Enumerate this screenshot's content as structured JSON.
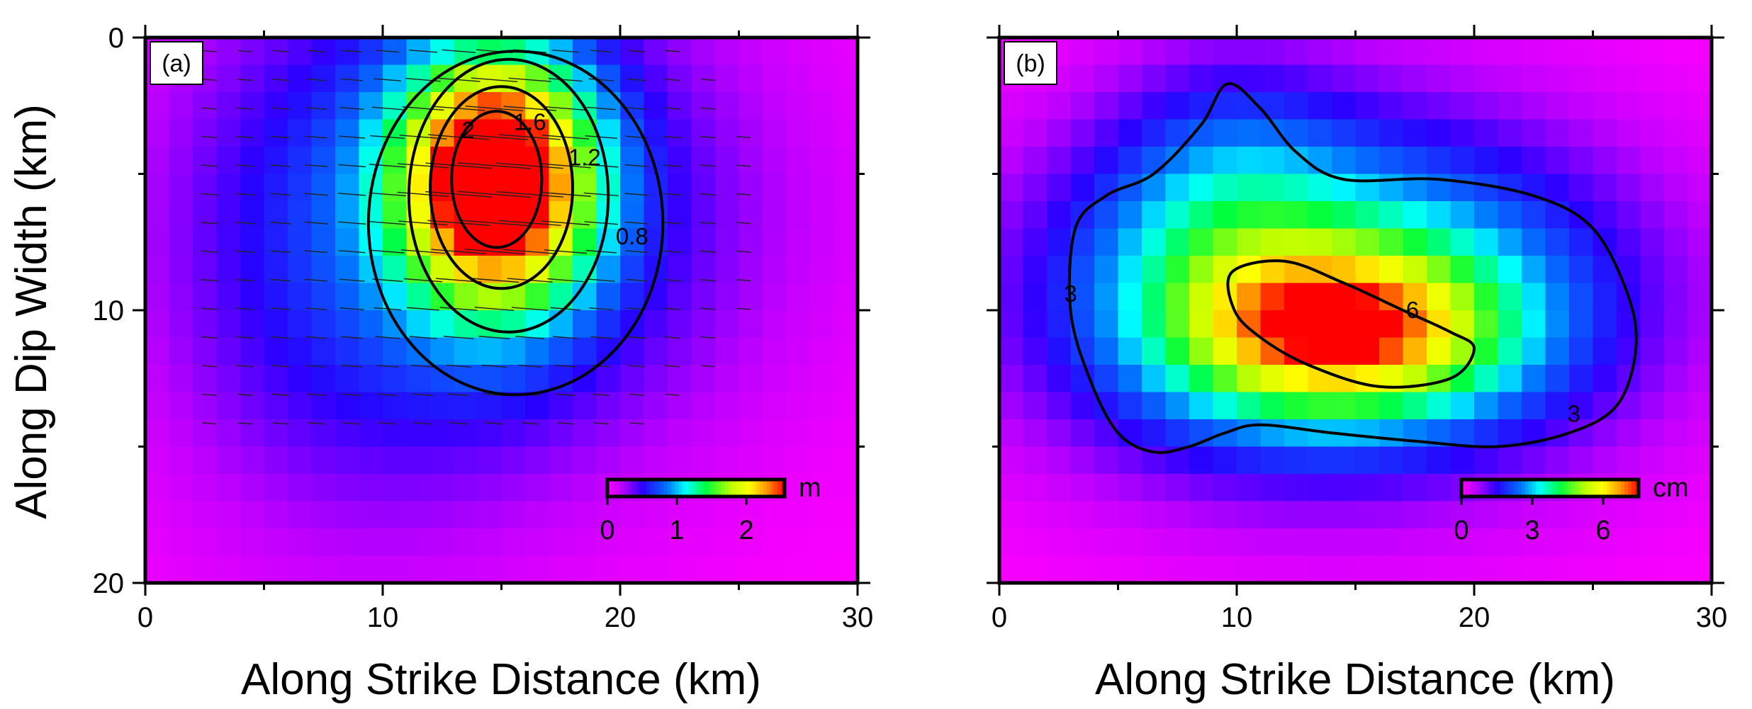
{
  "chart_data": [
    {
      "type": "heatmap",
      "panel_label": "(a)",
      "title": "",
      "xlabel": "Along Strike Distance (km)",
      "ylabel": "Along Dip Width (km)",
      "xlim": [
        0,
        30
      ],
      "ylim": [
        0,
        20
      ],
      "y_inverted": true,
      "xticks": [
        "0",
        "10",
        "20",
        "30"
      ],
      "yticks": [
        "0",
        "10",
        "20"
      ],
      "grid": {
        "nx": 30,
        "ny": 20
      },
      "field": {
        "max": 2.55,
        "sources": [
          {
            "x": 14.8,
            "y": 5.2,
            "sx": 2.8,
            "sy": 3.2,
            "amp": 2.55
          },
          {
            "x": 15.5,
            "y": 6.5,
            "sx": 8.0,
            "sy": 6.5,
            "amp": 0.6
          },
          {
            "x": 8.0,
            "y": 8.0,
            "sx": 6.0,
            "sy": 8.0,
            "amp": 0.35
          }
        ]
      },
      "contours": [
        {
          "level": 2.0,
          "label": "2",
          "center": [
            14.8,
            5.2
          ],
          "rx": 1.9,
          "ry": 2.5,
          "label_at": [
            13.6,
            3.4
          ]
        },
        {
          "level": 1.6,
          "label": "1.6",
          "center": [
            15.0,
            5.5
          ],
          "rx": 3.0,
          "ry": 3.7,
          "label_at": [
            16.2,
            3.1
          ]
        },
        {
          "level": 1.2,
          "label": "1.2",
          "center": [
            15.3,
            5.8
          ],
          "rx": 4.2,
          "ry": 5.0,
          "label_at": [
            18.5,
            4.4
          ]
        },
        {
          "level": 0.8,
          "label": "0.8",
          "center": [
            15.6,
            6.8
          ],
          "rx": 6.2,
          "ry": 6.3,
          "label_at": [
            20.5,
            7.3
          ]
        }
      ],
      "colorbar": {
        "unit": "m",
        "ticks": [
          "0",
          "1",
          "2"
        ],
        "tick_values": [
          0,
          1,
          2
        ],
        "range": [
          0,
          2.55
        ]
      }
    },
    {
      "type": "heatmap",
      "panel_label": "(b)",
      "title": "",
      "xlabel": "Along Strike Distance (km)",
      "ylabel": "",
      "xlim": [
        0,
        30
      ],
      "ylim": [
        0,
        20
      ],
      "y_inverted": true,
      "xticks": [
        "0",
        "10",
        "20",
        "30"
      ],
      "yticks": [],
      "grid": {
        "nx": 30,
        "ny": 20
      },
      "field": {
        "max": 7.5,
        "sources": [
          {
            "x": 14.5,
            "y": 10.8,
            "sx": 4.5,
            "sy": 2.0,
            "amp": 4.2
          },
          {
            "x": 14.0,
            "y": 9.5,
            "sx": 8.5,
            "sy": 4.5,
            "amp": 4.0
          },
          {
            "x": 9.5,
            "y": 6.0,
            "sx": 3.5,
            "sy": 4.0,
            "amp": 1.2
          }
        ]
      },
      "contours": [
        {
          "level": 6,
          "label": "6",
          "points": [
            [
              9.8,
              8.6
            ],
            [
              12,
              8.2
            ],
            [
              14.5,
              9.0
            ],
            [
              17,
              10.0
            ],
            [
              19,
              10.8
            ],
            [
              20,
              11.4
            ],
            [
              19,
              12.5
            ],
            [
              16,
              12.8
            ],
            [
              13,
              12.0
            ],
            [
              11,
              11.0
            ],
            [
              9.9,
              10.0
            ]
          ],
          "label_at": [
            17.4,
            10.0
          ]
        },
        {
          "level": 3,
          "label": "3",
          "points": [
            [
              3.2,
              7.0
            ],
            [
              4.5,
              5.8
            ],
            [
              6.5,
              5.0
            ],
            [
              8.5,
              3.2
            ],
            [
              9.6,
              1.7
            ],
            [
              11.0,
              2.6
            ],
            [
              12.5,
              4.2
            ],
            [
              14.5,
              5.2
            ],
            [
              18.5,
              5.2
            ],
            [
              22.5,
              5.8
            ],
            [
              25.0,
              7.0
            ],
            [
              26.5,
              9.5
            ],
            [
              26.8,
              11.5
            ],
            [
              26.0,
              13.5
            ],
            [
              24.0,
              14.5
            ],
            [
              21.0,
              15.0
            ],
            [
              17.5,
              14.8
            ],
            [
              14.0,
              14.5
            ],
            [
              11.0,
              14.2
            ],
            [
              9.5,
              14.5
            ],
            [
              8.0,
              15.0
            ],
            [
              6.5,
              15.2
            ],
            [
              5.0,
              14.5
            ],
            [
              3.8,
              12.5
            ],
            [
              3.0,
              10.0
            ]
          ],
          "label_at": [
            3.0,
            9.4
          ],
          "label2_at": [
            24.2,
            13.8
          ]
        }
      ],
      "colorbar": {
        "unit": "cm",
        "ticks": [
          "0",
          "3",
          "6"
        ],
        "tick_values": [
          0,
          3,
          6
        ],
        "range": [
          0,
          7.5
        ]
      }
    }
  ]
}
